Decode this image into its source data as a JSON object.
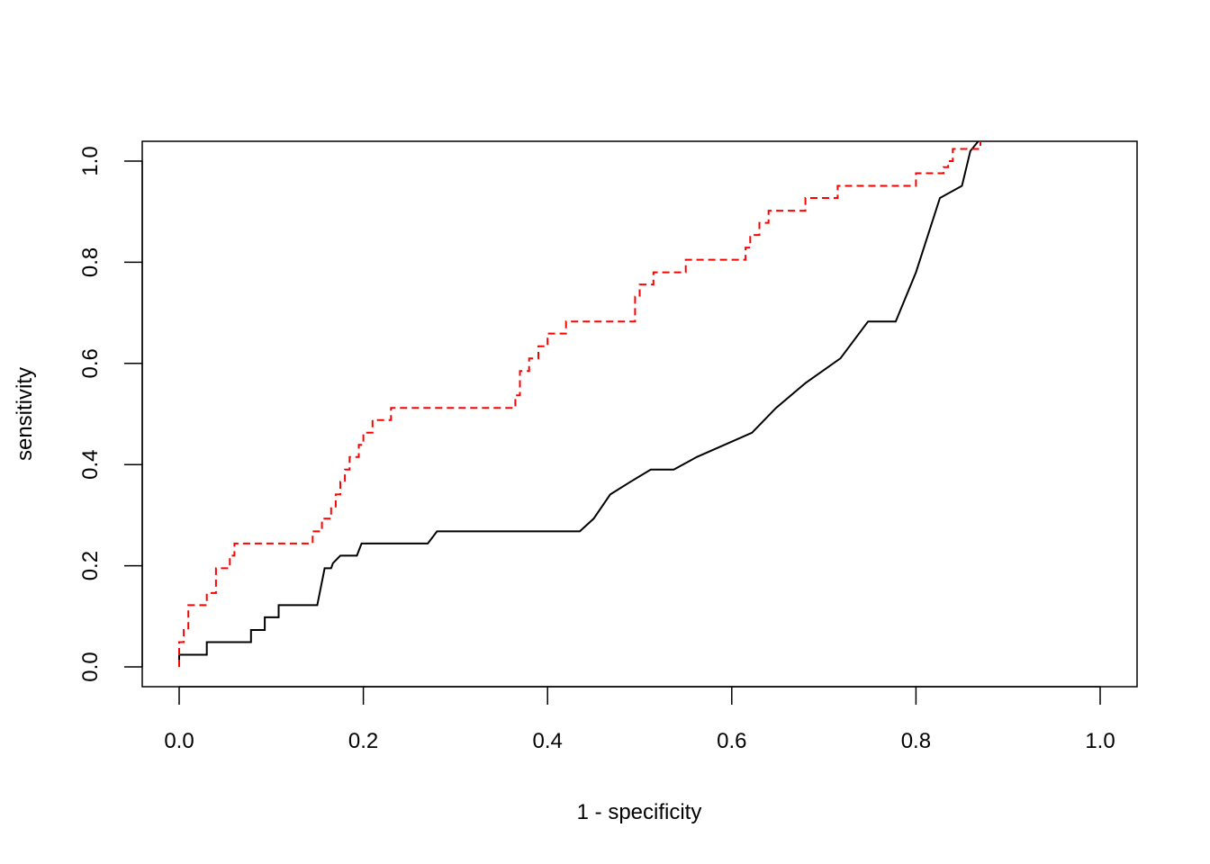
{
  "chart_data": {
    "type": "line",
    "xlabel": "1 - specificity",
    "ylabel": "sensitivity",
    "xlim": [
      0,
      1
    ],
    "ylim": [
      0,
      1
    ],
    "xticks": [
      "0.0",
      "0.2",
      "0.4",
      "0.6",
      "0.8",
      "1.0"
    ],
    "yticks": [
      "0.0",
      "0.2",
      "0.4",
      "0.6",
      "0.8",
      "1.0"
    ],
    "grid": false,
    "series": [
      {
        "color": "#000000",
        "dash": "solid",
        "x": [
          0,
          0,
          0.03,
          0.03,
          0.078,
          0.078,
          0.093,
          0.093,
          0.108,
          0.108,
          0.15,
          0.158,
          0.165,
          0.167,
          0.175,
          0.175,
          0.193,
          0.198,
          0.232,
          0.27,
          0.28,
          0.28,
          0.435,
          0.45,
          0.468,
          0.49,
          0.512,
          0.537,
          0.562,
          0.592,
          0.622,
          0.648,
          0.68,
          0.718,
          0.748,
          0.778,
          0.8,
          0.826,
          0.85,
          0.859,
          0.868
        ],
        "y": [
          0,
          0.024,
          0.024,
          0.049,
          0.049,
          0.073,
          0.073,
          0.098,
          0.098,
          0.122,
          0.122,
          0.195,
          0.195,
          0.205,
          0.22,
          0.22,
          0.22,
          0.244,
          0.244,
          0.244,
          0.268,
          0.268,
          0.268,
          0.293,
          0.341,
          0.366,
          0.39,
          0.39,
          0.415,
          0.439,
          0.463,
          0.512,
          0.561,
          0.61,
          0.683,
          0.683,
          0.78,
          0.927,
          0.951,
          1.02,
          1.04
        ]
      },
      {
        "color": "#ff0000",
        "dash": "dashed",
        "x": [
          0,
          0,
          0.005,
          0.005,
          0.01,
          0.01,
          0.02,
          0.02,
          0.03,
          0.03,
          0.04,
          0.04,
          0.055,
          0.055,
          0.06,
          0.06,
          0.145,
          0.145,
          0.155,
          0.155,
          0.165,
          0.165,
          0.17,
          0.17,
          0.175,
          0.175,
          0.18,
          0.18,
          0.185,
          0.185,
          0.195,
          0.195,
          0.2,
          0.2,
          0.21,
          0.21,
          0.23,
          0.23,
          0.365,
          0.365,
          0.37,
          0.37,
          0.38,
          0.38,
          0.39,
          0.39,
          0.4,
          0.4,
          0.42,
          0.42,
          0.495,
          0.495,
          0.5,
          0.5,
          0.515,
          0.515,
          0.535,
          0.535,
          0.55,
          0.55,
          0.56,
          0.56,
          0.615,
          0.615,
          0.62,
          0.62,
          0.63,
          0.63,
          0.64,
          0.64,
          0.68,
          0.68,
          0.69,
          0.69,
          0.715,
          0.715,
          0.72,
          0.72,
          0.8,
          0.8,
          0.81,
          0.81,
          0.825,
          0.825,
          0.83,
          0.83,
          0.835,
          0.835,
          0.84,
          0.84,
          0.855,
          0.855,
          0.87,
          0.87
        ],
        "y": [
          0,
          0.049,
          0.049,
          0.073,
          0.073,
          0.122,
          0.122,
          0.122,
          0.122,
          0.146,
          0.146,
          0.195,
          0.195,
          0.22,
          0.22,
          0.244,
          0.244,
          0.268,
          0.268,
          0.293,
          0.293,
          0.317,
          0.317,
          0.341,
          0.341,
          0.366,
          0.366,
          0.39,
          0.39,
          0.415,
          0.415,
          0.439,
          0.439,
          0.463,
          0.463,
          0.488,
          0.488,
          0.512,
          0.512,
          0.537,
          0.537,
          0.585,
          0.585,
          0.61,
          0.61,
          0.634,
          0.634,
          0.659,
          0.659,
          0.683,
          0.683,
          0.732,
          0.732,
          0.756,
          0.756,
          0.78,
          0.78,
          0.78,
          0.78,
          0.805,
          0.805,
          0.805,
          0.805,
          0.829,
          0.829,
          0.854,
          0.854,
          0.878,
          0.878,
          0.902,
          0.902,
          0.927,
          0.927,
          0.927,
          0.927,
          0.951,
          0.951,
          0.951,
          0.951,
          0.976,
          0.976,
          0.976,
          0.976,
          0.976,
          0.976,
          0.988,
          0.988,
          1.0,
          1.0,
          1.024,
          1.024,
          1.024,
          1.024,
          1.04
        ]
      }
    ]
  }
}
